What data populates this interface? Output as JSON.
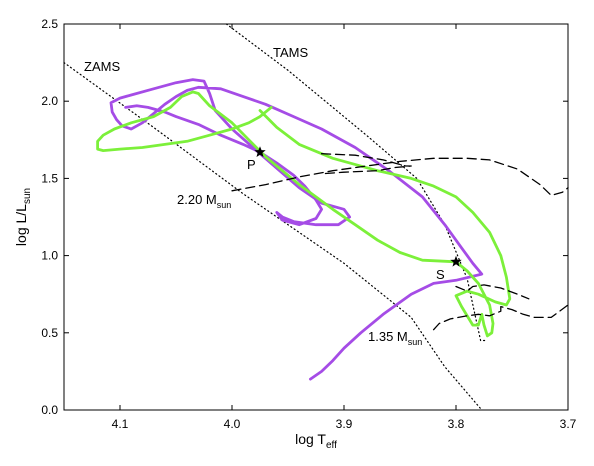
{
  "chart_data": {
    "type": "line",
    "title": "",
    "xlabel": "log T",
    "xlabel_sub": "eff",
    "ylabel": "log L/L",
    "ylabel_sub": "sun",
    "xlim": [
      4.15,
      3.7
    ],
    "x_reversed": true,
    "ylim": [
      0.0,
      2.5
    ],
    "grid": false,
    "x_ticks": [
      4.1,
      4.0,
      3.9,
      3.8,
      3.7
    ],
    "x_tick_labels": [
      "4.1",
      "4.0",
      "3.9",
      "3.8",
      "3.7"
    ],
    "y_ticks": [
      0.0,
      0.5,
      1.0,
      1.5,
      2.0,
      2.5
    ],
    "y_tick_labels": [
      "0.0",
      "0.5",
      "1.0",
      "1.5",
      "2.0",
      "2.5"
    ],
    "annotations": {
      "zams": "ZAMS",
      "tams": "TAMS",
      "p": "P",
      "s": "S",
      "m220": "2.20 M",
      "m220_sub": "sun",
      "m135": "1.35 M",
      "m135_sub": "sun"
    },
    "stars": [
      {
        "label": "P",
        "x": 3.975,
        "y": 1.67
      },
      {
        "label": "S",
        "x": 3.8,
        "y": 0.96
      }
    ],
    "series": [
      {
        "style": "dotted",
        "color": "#000000",
        "points": [
          [
            4.15,
            2.25
          ],
          [
            4.07,
            1.83
          ],
          [
            3.99,
            1.4
          ],
          [
            3.9,
            0.95
          ],
          [
            3.84,
            0.6
          ],
          [
            3.81,
            0.28
          ],
          [
            3.777,
            0.0
          ]
        ]
      },
      {
        "style": "dotted",
        "color": "#000000",
        "points": [
          [
            4.005,
            2.5
          ],
          [
            3.95,
            2.2
          ],
          [
            3.88,
            1.78
          ],
          [
            3.835,
            1.5
          ],
          [
            3.81,
            1.2
          ],
          [
            3.79,
            0.85
          ],
          [
            3.778,
            0.45
          ],
          [
            3.773,
            0.45
          ]
        ]
      },
      {
        "style": "solid",
        "color": "#a54ce6",
        "points": [
          [
            4.095,
            1.96
          ],
          [
            4.085,
            1.97
          ],
          [
            4.075,
            1.96
          ],
          [
            4.06,
            1.93
          ],
          [
            4.05,
            1.9
          ],
          [
            4.03,
            1.85
          ],
          [
            4.01,
            1.78
          ],
          [
            3.99,
            1.72
          ],
          [
            3.975,
            1.67
          ],
          [
            3.96,
            1.6
          ],
          [
            3.945,
            1.52
          ],
          [
            3.935,
            1.45
          ],
          [
            3.925,
            1.36
          ],
          [
            3.92,
            1.3
          ],
          [
            3.925,
            1.24
          ],
          [
            3.94,
            1.2
          ],
          [
            3.955,
            1.23
          ],
          [
            3.96,
            1.28
          ],
          [
            3.955,
            1.25
          ],
          [
            3.945,
            1.22
          ],
          [
            3.925,
            1.2
          ],
          [
            3.905,
            1.2
          ],
          [
            3.895,
            1.25
          ],
          [
            3.9,
            1.3
          ],
          [
            3.92,
            1.34
          ],
          [
            3.94,
            1.44
          ],
          [
            3.975,
            1.66
          ],
          [
            4.0,
            1.82
          ],
          [
            4.015,
            1.94
          ],
          [
            4.02,
            2.05
          ],
          [
            4.025,
            2.13
          ],
          [
            4.035,
            2.14
          ],
          [
            4.05,
            2.12
          ],
          [
            4.07,
            2.08
          ],
          [
            4.09,
            2.04
          ],
          [
            4.1,
            2.02
          ],
          [
            4.108,
            1.99
          ],
          [
            4.107,
            1.93
          ],
          [
            4.103,
            1.88
          ],
          [
            4.098,
            1.84
          ],
          [
            4.09,
            1.82
          ],
          [
            4.08,
            1.86
          ],
          [
            4.07,
            1.92
          ],
          [
            4.06,
            1.98
          ],
          [
            4.05,
            2.03
          ],
          [
            4.04,
            2.07
          ],
          [
            4.03,
            2.09
          ],
          [
            4.01,
            2.08
          ],
          [
            3.99,
            2.03
          ],
          [
            3.97,
            1.98
          ],
          [
            3.945,
            1.9
          ],
          [
            3.92,
            1.82
          ],
          [
            3.89,
            1.7
          ],
          [
            3.86,
            1.55
          ],
          [
            3.83,
            1.38
          ],
          [
            3.81,
            1.2
          ],
          [
            3.795,
            1.05
          ],
          [
            3.785,
            0.95
          ],
          [
            3.777,
            0.88
          ],
          [
            3.8,
            0.84
          ],
          [
            3.82,
            0.82
          ],
          [
            3.84,
            0.75
          ],
          [
            3.865,
            0.62
          ],
          [
            3.885,
            0.5
          ],
          [
            3.9,
            0.4
          ],
          [
            3.91,
            0.32
          ],
          [
            3.92,
            0.25
          ],
          [
            3.93,
            0.2
          ]
        ]
      },
      {
        "style": "solid",
        "color": "#7cf03a",
        "points": [
          [
            3.965,
            1.96
          ],
          [
            3.975,
            1.9
          ],
          [
            3.985,
            1.86
          ],
          [
            4.0,
            1.82
          ],
          [
            4.02,
            1.78
          ],
          [
            4.04,
            1.74
          ],
          [
            4.06,
            1.72
          ],
          [
            4.08,
            1.7
          ],
          [
            4.1,
            1.69
          ],
          [
            4.115,
            1.68
          ],
          [
            4.12,
            1.69
          ],
          [
            4.12,
            1.74
          ],
          [
            4.115,
            1.78
          ],
          [
            4.105,
            1.82
          ],
          [
            4.09,
            1.86
          ],
          [
            4.07,
            1.9
          ],
          [
            4.055,
            1.96
          ],
          [
            4.045,
            2.03
          ],
          [
            4.035,
            2.06
          ],
          [
            4.03,
            2.05
          ],
          [
            4.02,
            1.97
          ],
          [
            4.0,
            1.86
          ],
          [
            3.985,
            1.75
          ],
          [
            3.97,
            1.64
          ],
          [
            3.955,
            1.55
          ],
          [
            3.94,
            1.46
          ],
          [
            3.925,
            1.38
          ],
          [
            3.91,
            1.3
          ],
          [
            3.89,
            1.2
          ],
          [
            3.87,
            1.1
          ],
          [
            3.85,
            1.02
          ],
          [
            3.83,
            0.97
          ],
          [
            3.8,
            0.96
          ],
          [
            3.79,
            0.9
          ],
          [
            3.78,
            0.82
          ],
          [
            3.77,
            0.68
          ],
          [
            3.767,
            0.56
          ],
          [
            3.768,
            0.5
          ],
          [
            3.772,
            0.48
          ],
          [
            3.775,
            0.55
          ],
          [
            3.777,
            0.62
          ],
          [
            3.78,
            0.55
          ],
          [
            3.785,
            0.55
          ],
          [
            3.795,
            0.67
          ],
          [
            3.8,
            0.74
          ],
          [
            3.79,
            0.77
          ],
          [
            3.78,
            0.75
          ],
          [
            3.765,
            0.7
          ],
          [
            3.755,
            0.68
          ],
          [
            3.752,
            0.72
          ],
          [
            3.755,
            0.86
          ],
          [
            3.76,
            1.0
          ],
          [
            3.77,
            1.15
          ],
          [
            3.785,
            1.28
          ],
          [
            3.8,
            1.38
          ],
          [
            3.82,
            1.45
          ],
          [
            3.84,
            1.5
          ],
          [
            3.87,
            1.55
          ],
          [
            3.91,
            1.63
          ],
          [
            3.94,
            1.72
          ],
          [
            3.96,
            1.83
          ],
          [
            3.975,
            1.94
          ]
        ]
      },
      {
        "style": "dashed",
        "color": "#000000",
        "points": [
          [
            4.0,
            1.42
          ],
          [
            3.97,
            1.46
          ],
          [
            3.94,
            1.51
          ],
          [
            3.91,
            1.55
          ],
          [
            3.88,
            1.58
          ],
          [
            3.85,
            1.61
          ],
          [
            3.82,
            1.63
          ],
          [
            3.79,
            1.63
          ],
          [
            3.77,
            1.62
          ],
          [
            3.745,
            1.56
          ],
          [
            3.725,
            1.46
          ],
          [
            3.715,
            1.39
          ],
          [
            3.705,
            1.41
          ],
          [
            3.7,
            1.44
          ]
        ]
      },
      {
        "style": "dashed",
        "color": "#000000",
        "points": [
          [
            3.92,
            1.66
          ],
          [
            3.89,
            1.65
          ],
          [
            3.865,
            1.62
          ],
          [
            3.845,
            1.58
          ],
          [
            3.84,
            1.58
          ],
          [
            3.855,
            1.57
          ],
          [
            3.87,
            1.55
          ],
          [
            3.9,
            1.54
          ],
          [
            3.92,
            1.53
          ]
        ]
      },
      {
        "style": "dashed",
        "color": "#000000",
        "points": [
          [
            3.82,
            0.52
          ],
          [
            3.815,
            0.56
          ],
          [
            3.805,
            0.59
          ],
          [
            3.79,
            0.61
          ],
          [
            3.78,
            0.62
          ],
          [
            3.77,
            0.61
          ],
          [
            3.76,
            0.64
          ],
          [
            3.76,
            0.67
          ],
          [
            3.75,
            0.65
          ],
          [
            3.74,
            0.62
          ],
          [
            3.73,
            0.6
          ],
          [
            3.715,
            0.6
          ],
          [
            3.7,
            0.68
          ]
        ]
      },
      {
        "style": "dashed",
        "color": "#000000",
        "points": [
          [
            3.8,
            0.8
          ],
          [
            3.79,
            0.77
          ],
          [
            3.785,
            0.8
          ],
          [
            3.775,
            0.81
          ],
          [
            3.76,
            0.79
          ],
          [
            3.745,
            0.75
          ],
          [
            3.735,
            0.72
          ]
        ]
      }
    ]
  }
}
